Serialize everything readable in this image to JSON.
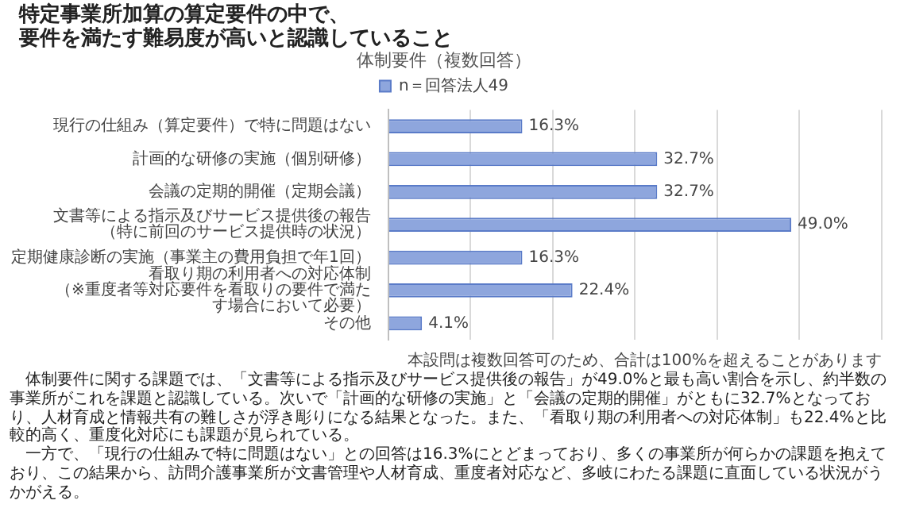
{
  "chart_data": {
    "type": "bar",
    "orientation": "horizontal",
    "title": "特定事業所加算の算定要件の中で、要件を満たす難易度が高いと認識していること",
    "subtitle": "体制要件（複数回答）",
    "categories": [
      "現行の仕組み（算定要件）で特に問題はない",
      "計画的な研修の実施（個別研修）",
      "会議の定期的開催（定期会議）",
      "文書等による指示及びサービス提供後の報告（特に前回のサービス提供時の状況）",
      "定期健康診断の実施（事業主の費用負担で年1回）",
      "看取り期の利用者への対応体制（※重度者等対応要件を看取りの要件で満たす場合において必要）",
      "その他"
    ],
    "series": [
      {
        "name": "n＝回答法人49",
        "color": "#8ea6dd",
        "values": [
          16.3,
          32.7,
          32.7,
          49.0,
          16.3,
          22.4,
          4.1
        ],
        "value_labels": [
          "16.3%",
          "32.7%",
          "32.7%",
          "49.0%",
          "16.3%",
          "22.4%",
          "4.1%"
        ]
      }
    ],
    "xlim": [
      0,
      60
    ],
    "xticks": [
      {
        "value": 0,
        "label": null
      },
      {
        "value": 10,
        "label": null
      },
      {
        "value": 20,
        "label": null
      },
      {
        "value": 30,
        "label": null
      },
      {
        "value": 40,
        "label": null
      },
      {
        "value": 50,
        "label": null
      },
      {
        "value": 60,
        "label": null
      }
    ],
    "tick_labels": "y",
    "grid": "x",
    "legend": "top",
    "annotations": [
      "本設問は複数回答可のため、合計は100%を超えることがあります",
      "体制要件に関する課題では、「文書等による指示及びサービス提供後の報告」が49.0%と最も高い割合を示し、約半数の事業所がこれを課題と認識している。次いで「計画的な研修の実施」と「会議の定期的開催」がともに32.7%となっており、人材育成と情報共有の難しさが浮き彫りになる結果となった。また、「看取り期の利用者への対応体制」も22.4%と比較的高く、重度化対応にも課題が見られている。",
      "一方で、「現行の仕組みで特に問題はない」との回答は16.3%にとどまっており、多くの事業所が何らかの課題を抱えており、この結果から、訪問介護事業所が文書管理や人材育成、重度者対応など、多岐にわたる課題に直面している状況がうかがえる。"
    ]
  }
}
